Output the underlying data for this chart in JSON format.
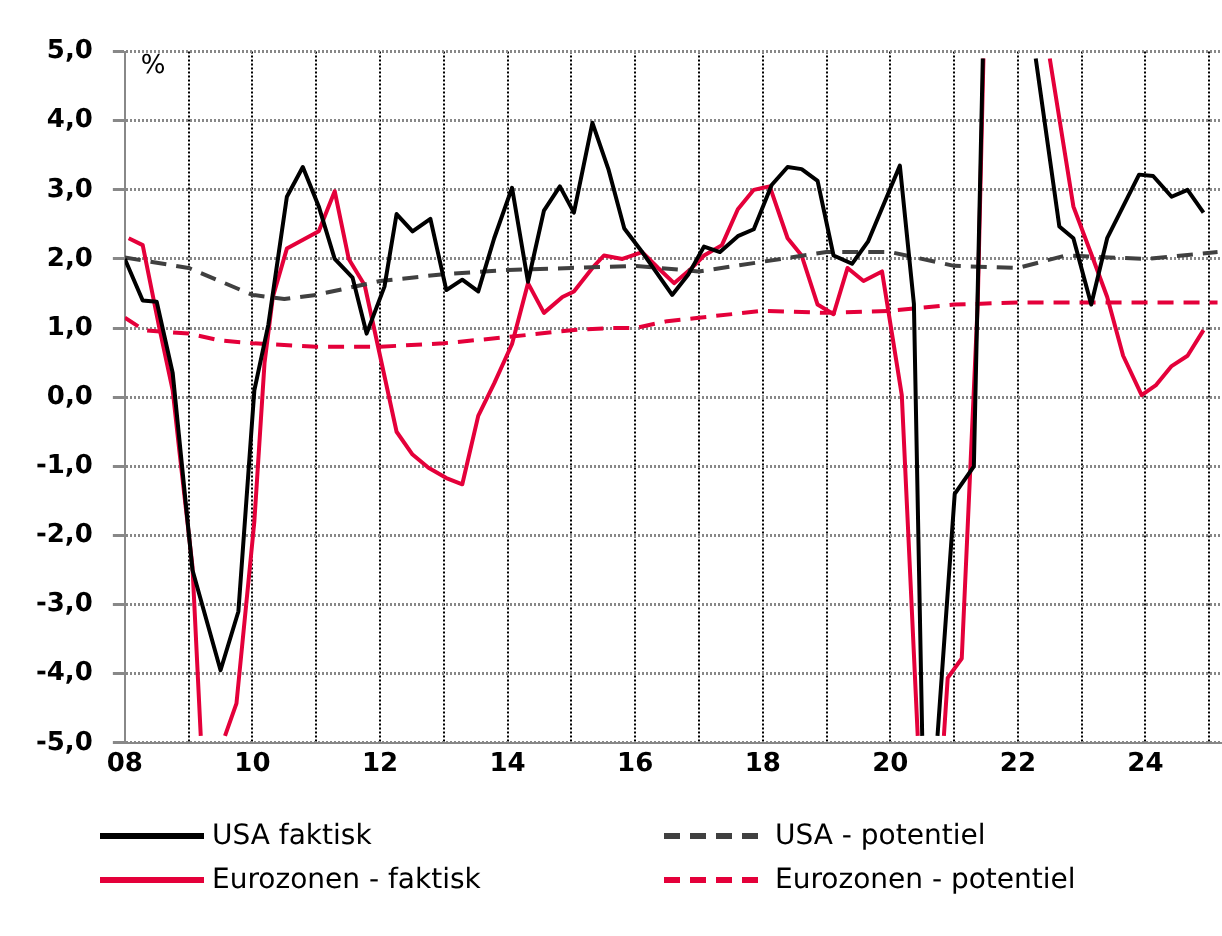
{
  "chart_data": {
    "type": "line",
    "ylabel": "%",
    "xlim": [
      2008,
      2025.2
    ],
    "ylim": [
      -5,
      5
    ],
    "xticks": [
      {
        "value": 2008,
        "label": "08"
      },
      {
        "value": 2009,
        "label": null
      },
      {
        "value": 2010,
        "label": "10"
      },
      {
        "value": 2011,
        "label": null
      },
      {
        "value": 2012,
        "label": "12"
      },
      {
        "value": 2013,
        "label": null
      },
      {
        "value": 2014,
        "label": "14"
      },
      {
        "value": 2015,
        "label": null
      },
      {
        "value": 2016,
        "label": "16"
      },
      {
        "value": 2017,
        "label": null
      },
      {
        "value": 2018,
        "label": "18"
      },
      {
        "value": 2019,
        "label": null
      },
      {
        "value": 2020,
        "label": "20"
      },
      {
        "value": 2021,
        "label": null
      },
      {
        "value": 2022,
        "label": "22"
      },
      {
        "value": 2023,
        "label": null
      },
      {
        "value": 2024,
        "label": "24"
      },
      {
        "value": 2025,
        "label": null
      }
    ],
    "yticks": [
      {
        "value": -5,
        "label": "-5,0"
      },
      {
        "value": -4,
        "label": "-4,0"
      },
      {
        "value": -3,
        "label": "-3,0"
      },
      {
        "value": -2,
        "label": "-2,0"
      },
      {
        "value": -1,
        "label": "-1,0"
      },
      {
        "value": 0,
        "label": "0,0"
      },
      {
        "value": 1,
        "label": "1,0"
      },
      {
        "value": 2,
        "label": "2,0"
      },
      {
        "value": 3,
        "label": "3,0"
      },
      {
        "value": 4,
        "label": "4,0"
      },
      {
        "value": 5,
        "label": "5,0"
      }
    ],
    "grid": true,
    "legend": "bottom",
    "marker": "none",
    "series": [
      {
        "name": "USA faktisk",
        "color": "#000000",
        "line_style": "solid",
        "x": [
          2008.0,
          2008.28,
          2008.5,
          2008.75,
          2009.06,
          2009.5,
          2009.78,
          2010.03,
          2010.25,
          2010.54,
          2010.79,
          2011.04,
          2011.29,
          2011.57,
          2011.79,
          2012.07,
          2012.26,
          2012.51,
          2012.79,
          2013.04,
          2013.29,
          2013.54,
          2013.79,
          2014.07,
          2014.32,
          2014.57,
          2014.82,
          2015.04,
          2015.33,
          2015.58,
          2015.83,
          2016.11,
          2016.58,
          2016.83,
          2017.08,
          2017.33,
          2017.61,
          2017.86,
          2018.14,
          2018.39,
          2018.61,
          2018.86,
          2019.11,
          2019.4,
          2019.65,
          2019.9,
          2020.15,
          2020.37,
          2020.5,
          2020.62,
          2020.74,
          2021.01,
          2021.31,
          2021.45,
          2021.9,
          2022.28,
          2022.65,
          2022.87,
          2023.15,
          2023.4,
          2023.65,
          2023.9,
          2024.12,
          2024.41,
          2024.66,
          2024.91
        ],
        "values": [
          2.0,
          1.4,
          1.38,
          0.35,
          -2.5,
          -3.95,
          -3.1,
          0.1,
          1.05,
          2.9,
          3.33,
          2.76,
          2.0,
          1.73,
          0.92,
          1.6,
          2.65,
          2.4,
          2.58,
          1.55,
          1.7,
          1.53,
          2.3,
          3.03,
          1.67,
          2.7,
          3.05,
          2.67,
          3.97,
          3.3,
          2.44,
          2.1,
          1.48,
          1.77,
          2.18,
          2.1,
          2.33,
          2.43,
          3.07,
          3.33,
          3.3,
          3.13,
          2.05,
          1.93,
          2.25,
          2.8,
          3.35,
          1.35,
          -4.9,
          null,
          -4.9,
          -1.4,
          -1.0,
          4.9,
          null,
          4.9,
          2.47,
          2.3,
          1.34,
          2.3,
          2.76,
          3.22,
          3.2,
          2.9,
          3.0,
          2.67
        ]
      },
      {
        "name": "USA - potentiel",
        "color": "#404040",
        "line_style": "dashed",
        "x": [
          2008,
          2009,
          2010,
          2010.5,
          2011,
          2012,
          2013,
          2014,
          2015,
          2016,
          2017,
          2018,
          2019,
          2020,
          2021,
          2022,
          2022.75,
          2024,
          2025.13
        ],
        "values": [
          2.02,
          1.87,
          1.48,
          1.42,
          1.48,
          1.68,
          1.78,
          1.84,
          1.87,
          1.9,
          1.82,
          1.96,
          2.1,
          2.1,
          1.9,
          1.87,
          2.05,
          2.0,
          2.1
        ]
      },
      {
        "name": "Eurozonen - faktisk",
        "color": "#e4003a",
        "line_style": "solid",
        "x": [
          2008.06,
          2008.28,
          2008.53,
          2008.75,
          2008.85,
          2009.06,
          2009.19,
          2009.4,
          2009.57,
          2009.75,
          2010.03,
          2010.19,
          2010.32,
          2010.54,
          2011.04,
          2011.29,
          2011.51,
          2011.76,
          2012.26,
          2012.51,
          2012.76,
          2013.04,
          2013.29,
          2013.54,
          2013.79,
          2014.07,
          2014.32,
          2014.57,
          2014.86,
          2015.04,
          2015.33,
          2015.51,
          2015.8,
          2016.11,
          2016.36,
          2016.61,
          2016.89,
          2017.08,
          2017.36,
          2017.61,
          2017.86,
          2018.11,
          2018.39,
          2018.61,
          2018.86,
          2019.11,
          2019.33,
          2019.58,
          2019.87,
          2020.18,
          2020.43,
          2020.6,
          2020.84,
          2020.9,
          2021.12,
          2021.37,
          2021.46,
          2022.0,
          2022.5,
          2022.87,
          2023.18,
          2023.4,
          2023.65,
          2023.94,
          2024.16,
          2024.41,
          2024.66,
          2024.91
        ],
        "values": [
          2.3,
          2.2,
          1.05,
          0.1,
          -0.74,
          -2.45,
          -4.9,
          null,
          -4.9,
          -4.43,
          -1.8,
          0.5,
          1.45,
          2.15,
          2.4,
          2.98,
          2.0,
          1.62,
          -0.5,
          -0.83,
          -1.02,
          -1.17,
          -1.26,
          -0.27,
          0.2,
          0.77,
          1.65,
          1.22,
          1.45,
          1.53,
          1.87,
          2.05,
          2.0,
          2.1,
          1.87,
          1.65,
          1.87,
          2.05,
          2.2,
          2.72,
          3.0,
          3.05,
          2.3,
          2.05,
          1.34,
          1.2,
          1.87,
          1.68,
          1.82,
          0.03,
          -4.9,
          null,
          -4.9,
          -4.06,
          -3.78,
          1.34,
          4.9,
          null,
          4.9,
          2.76,
          2.0,
          1.45,
          0.6,
          0.03,
          0.17,
          0.45,
          0.6,
          0.97
        ]
      },
      {
        "name": "Eurozonen - potentiel",
        "color": "#e4003a",
        "line_style": "dashed",
        "x": [
          2008,
          2008.3,
          2009,
          2009.5,
          2010,
          2011,
          2012,
          2013,
          2014,
          2015,
          2015.6,
          2016,
          2016.5,
          2017,
          2018,
          2019,
          2020,
          2021,
          2022,
          2023,
          2025.13
        ],
        "values": [
          1.15,
          0.97,
          0.92,
          0.82,
          0.78,
          0.73,
          0.73,
          0.78,
          0.87,
          0.97,
          1.0,
          1.0,
          1.1,
          1.15,
          1.25,
          1.22,
          1.25,
          1.34,
          1.37,
          1.37,
          1.37
        ]
      }
    ]
  }
}
